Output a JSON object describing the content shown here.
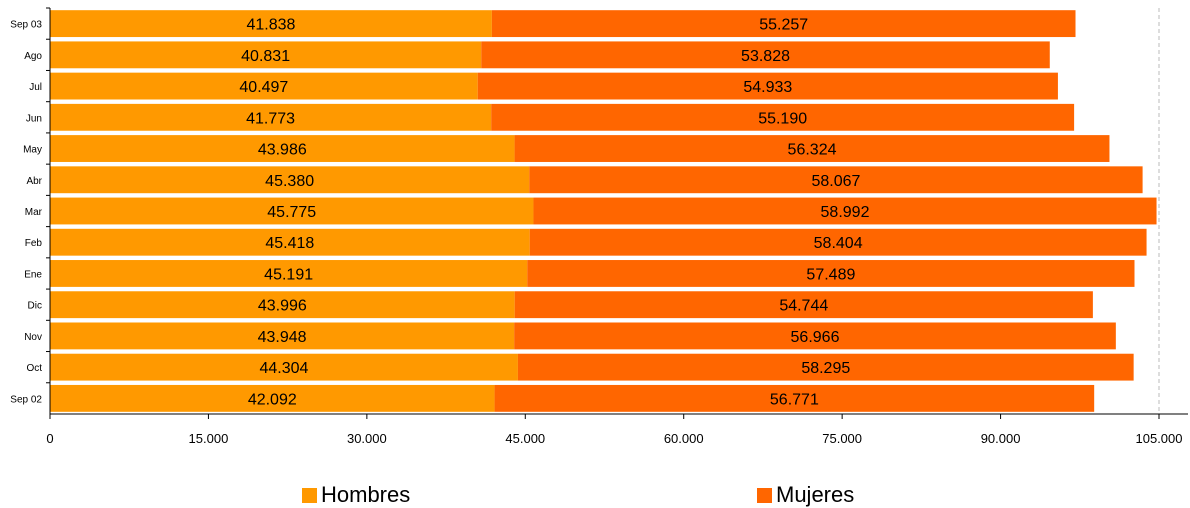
{
  "chart_data": {
    "type": "bar",
    "orientation": "horizontal",
    "stacked": true,
    "categories": [
      "Sep 02",
      "Oct",
      "Nov",
      "Dic",
      "Ene",
      "Feb",
      "Mar",
      "Abr",
      "May",
      "Jun",
      "Jul",
      "Ago",
      "Sep 03"
    ],
    "series": [
      {
        "name": "Hombres",
        "color": "#FF9900",
        "values": [
          42092,
          44304,
          43948,
          43996,
          45191,
          45418,
          45775,
          45380,
          43986,
          41773,
          40497,
          40831,
          41838
        ],
        "labels": [
          "42.092",
          "44.304",
          "43.948",
          "43.996",
          "45.191",
          "45.418",
          "45.775",
          "45.380",
          "43.986",
          "41.773",
          "40.497",
          "40.831",
          "41.838"
        ]
      },
      {
        "name": "Mujeres",
        "color": "#FF6600",
        "values": [
          56771,
          58295,
          56966,
          54744,
          57489,
          58404,
          58992,
          58067,
          56324,
          55190,
          54933,
          53828,
          55257
        ],
        "labels": [
          "56.771",
          "58.295",
          "56.966",
          "54.744",
          "57.489",
          "58.404",
          "58.992",
          "58.067",
          "56.324",
          "55.190",
          "54.933",
          "53.828",
          "55.257"
        ]
      }
    ],
    "xlim": [
      0,
      105000
    ],
    "xticks": [
      0,
      15000,
      30000,
      45000,
      60000,
      75000,
      90000,
      105000
    ],
    "xtick_labels": [
      "0",
      "15.000",
      "30.000",
      "45.000",
      "60.000",
      "75.000",
      "90.000",
      "105.000"
    ],
    "grid": "vertical dashed at max tick",
    "legend_position": "bottom"
  }
}
